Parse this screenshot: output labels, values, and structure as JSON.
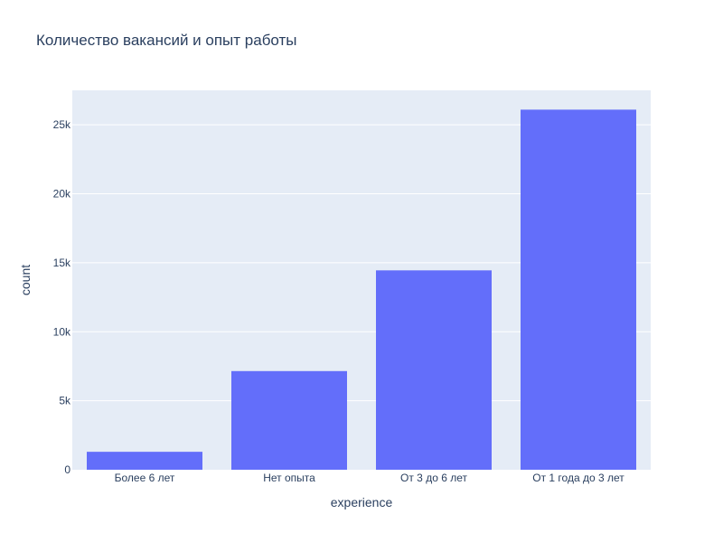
{
  "chart_data": {
    "type": "bar",
    "title": "Количество вакансий и опыт работы",
    "xlabel": "experience",
    "ylabel": "count",
    "categories": [
      "Более 6 лет",
      "Нет опыта",
      "От 3 до 6 лет",
      "От 1 года до 3 лет"
    ],
    "values": [
      1300,
      7150,
      14450,
      26100
    ],
    "ylim": [
      0,
      27500
    ],
    "yticks": [
      0,
      5000,
      10000,
      15000,
      20000,
      25000
    ],
    "ytick_labels": [
      "0",
      "5k",
      "10k",
      "15k",
      "20k",
      "25k"
    ],
    "grid": true,
    "bar_color": "#636efa",
    "plot_bg": "#e5ecf6",
    "grid_color": "#ffffff",
    "text_color": "#2a3f5f"
  }
}
